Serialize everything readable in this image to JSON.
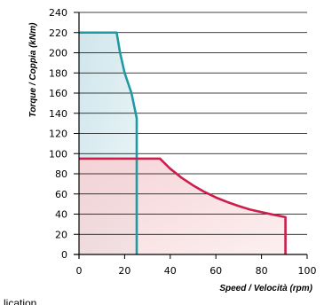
{
  "chart_data": {
    "type": "area",
    "xlabel": "Speed / Velocità (rpm)",
    "ylabel": "Torque / Coppia (kNm)",
    "xlim": [
      0,
      100
    ],
    "ylim": [
      0,
      240
    ],
    "x_ticks": [
      0,
      20,
      40,
      60,
      80,
      100
    ],
    "y_ticks": [
      0,
      20,
      40,
      60,
      80,
      100,
      120,
      140,
      160,
      180,
      200,
      220,
      240
    ],
    "grid": true,
    "series": [
      {
        "color": "#1f9aa3",
        "fill": "#cfe6ec",
        "points": [
          [
            0,
            220
          ],
          [
            16.5,
            220
          ],
          [
            18,
            200
          ],
          [
            20,
            180
          ],
          [
            23,
            160
          ],
          [
            25.3,
            135
          ],
          [
            25.3,
            0
          ]
        ]
      },
      {
        "color": "#cc1e4c",
        "fill": "#f6d3d6",
        "points": [
          [
            0,
            95
          ],
          [
            35.5,
            95
          ],
          [
            40,
            85
          ],
          [
            45,
            76
          ],
          [
            50,
            68.5
          ],
          [
            55,
            62
          ],
          [
            60,
            56.5
          ],
          [
            65,
            52
          ],
          [
            70,
            48
          ],
          [
            75,
            44.5
          ],
          [
            80,
            42
          ],
          [
            85,
            39.5
          ],
          [
            90.5,
            37
          ],
          [
            90.5,
            0
          ]
        ]
      }
    ]
  },
  "corner_text": "lication"
}
